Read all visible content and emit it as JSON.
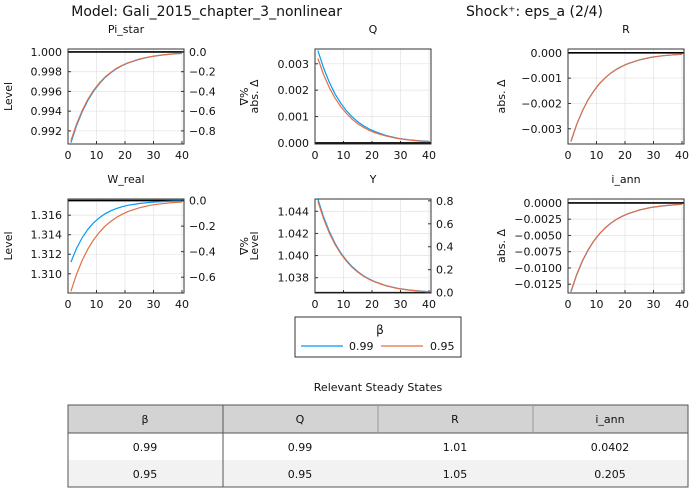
{
  "header": {
    "model": "Model: Gali_2015_chapter_3_nonlinear",
    "shock": "Shock⁺: eps_a  (2/4)"
  },
  "colors": {
    "series": [
      "#009AFA",
      "#E26F46"
    ],
    "steady_line": "#000000"
  },
  "legend": {
    "title": "β",
    "entries": [
      "0.99",
      "0.95"
    ],
    "placement": "bottom-center"
  },
  "chart_data": [
    {
      "type": "line",
      "title": "Pi_star",
      "ylabel": "Level",
      "y2label": "%Δ",
      "xlim": [
        0,
        40.7
      ],
      "xticks": [
        0,
        10,
        20,
        30,
        40
      ],
      "grid": true,
      "ylim": [
        0.99067,
        1.0003
      ],
      "yticks": [
        0.992,
        0.994,
        0.996,
        0.998,
        1.0
      ],
      "ytick_labels": [
        "0.992",
        "0.994",
        "0.996",
        "0.998",
        "1.000"
      ],
      "steady_state": 1.0,
      "y2lim": [
        -0.933,
        0.03
      ],
      "y2ticks": [
        -0.8,
        -0.6,
        -0.4,
        -0.2,
        0.0
      ],
      "y2tick_labels": [
        "−0.8",
        "−0.6",
        "−0.4",
        "−0.2",
        "0.0"
      ],
      "x": [
        1,
        3,
        5,
        7,
        9,
        11,
        13,
        15,
        17,
        19,
        21,
        25,
        29,
        33,
        37,
        40
      ],
      "series": [
        {
          "name": "0.99",
          "values": [
            0.9908,
            0.99255,
            0.99396,
            0.99511,
            0.99604,
            0.99679,
            0.99741,
            0.99789,
            0.9983,
            0.99862,
            0.99888,
            0.99926,
            0.99952,
            0.99969,
            0.9998,
            0.99985
          ]
        },
        {
          "name": "0.95",
          "values": [
            0.991,
            0.99271,
            0.9941,
            0.99522,
            0.99613,
            0.99686,
            0.99746,
            0.99794,
            0.99834,
            0.99865,
            0.9989,
            0.99928,
            0.99953,
            0.99969,
            0.9998,
            0.99986
          ]
        }
      ]
    },
    {
      "type": "line",
      "title": "Q",
      "ylabel": "abs. Δ",
      "xlim": [
        0,
        40.7
      ],
      "xticks": [
        0,
        10,
        20,
        30,
        40
      ],
      "grid": true,
      "ylim": [
        -4e-05,
        0.00356
      ],
      "yticks": [
        0,
        0.001,
        0.002,
        0.003
      ],
      "ytick_labels": [
        "0.000",
        "0.001",
        "0.002",
        "0.003"
      ],
      "steady_state": 0,
      "x": [
        1,
        3,
        5,
        7,
        9,
        11,
        13,
        15,
        17,
        19,
        21,
        25,
        29,
        33,
        37,
        40
      ],
      "series": [
        {
          "name": "0.99",
          "values": [
            0.0035,
            0.00284,
            0.0023,
            0.00186,
            0.00151,
            0.00122,
            0.00099,
            0.0008,
            0.00065,
            0.00053,
            0.00043,
            0.00028,
            0.00018,
            0.00012,
            8e-05,
            6e-05
          ]
        },
        {
          "name": "0.95",
          "values": [
            0.0032,
            0.00259,
            0.0021,
            0.0017,
            0.00138,
            0.00112,
            0.0009,
            0.00073,
            0.00059,
            0.00048,
            0.00039,
            0.00026,
            0.00017,
            0.00011,
            7e-05,
            5e-05
          ]
        }
      ]
    },
    {
      "type": "line",
      "title": "R",
      "ylabel": "abs. Δ",
      "xlim": [
        0,
        40.7
      ],
      "xticks": [
        0,
        10,
        20,
        30,
        40
      ],
      "grid": true,
      "ylim": [
        -0.0036,
        0.00015
      ],
      "yticks": [
        -0.003,
        -0.002,
        -0.001,
        0
      ],
      "ytick_labels": [
        "−0.003",
        "−0.002",
        "−0.001",
        "0.000"
      ],
      "steady_state": 0,
      "x": [
        1,
        3,
        5,
        7,
        9,
        11,
        13,
        15,
        17,
        19,
        21,
        25,
        29,
        33,
        37,
        40
      ],
      "series": [
        {
          "name": "0.99",
          "values": [
            -0.0035,
            -0.00284,
            -0.0023,
            -0.00186,
            -0.00151,
            -0.00122,
            -0.00099,
            -0.0008,
            -0.00065,
            -0.00053,
            -0.00043,
            -0.00028,
            -0.00018,
            -0.00012,
            -8e-05,
            -6e-05
          ]
        },
        {
          "name": "0.95",
          "values": [
            -0.0035,
            -0.00284,
            -0.0023,
            -0.00186,
            -0.00151,
            -0.00122,
            -0.00099,
            -0.0008,
            -0.00065,
            -0.00053,
            -0.00043,
            -0.00028,
            -0.00018,
            -0.00012,
            -8e-05,
            -6e-05
          ]
        }
      ]
    },
    {
      "type": "line",
      "title": "W_real",
      "ylabel": "Level",
      "y2label": "%Δ",
      "xlim": [
        0,
        40.7
      ],
      "xticks": [
        0,
        10,
        20,
        30,
        40
      ],
      "grid": true,
      "ylim": [
        1.30803,
        1.31766
      ],
      "yticks": [
        1.31,
        1.312,
        1.314,
        1.316
      ],
      "ytick_labels": [
        "1.310",
        "1.312",
        "1.314",
        "1.316"
      ],
      "steady_state": 1.3175,
      "y2lim": [
        -0.7235,
        0.0121
      ],
      "y2ticks": [
        -0.6,
        -0.4,
        -0.2,
        0.0
      ],
      "y2tick_labels": [
        "−0.6",
        "−0.4",
        "−0.2",
        "0.0"
      ],
      "x": [
        1,
        3,
        5,
        7,
        9,
        11,
        13,
        15,
        17,
        19,
        21,
        25,
        29,
        33,
        37,
        40
      ],
      "series": [
        {
          "name": "0.99",
          "values": [
            1.3112,
            1.31262,
            1.31372,
            1.31458,
            1.31523,
            1.31574,
            1.31614,
            1.31645,
            1.31669,
            1.31687,
            1.31701,
            1.3172,
            1.31732,
            1.31739,
            1.31744,
            1.31746
          ]
        },
        {
          "name": "0.95",
          "values": [
            1.3082,
            1.30997,
            1.3114,
            1.31256,
            1.3135,
            1.31425,
            1.31488,
            1.31537,
            1.31578,
            1.3161,
            1.31637,
            1.31676,
            1.31702,
            1.31718,
            1.3173,
            1.31735
          ]
        }
      ]
    },
    {
      "type": "line",
      "title": "Y",
      "ylabel": "Level",
      "y2label": "",
      "xlim": [
        0,
        40.7
      ],
      "xticks": [
        0,
        10,
        20,
        30,
        40
      ],
      "grid": true,
      "ylim": [
        1.03662,
        1.04511
      ],
      "yticks": [
        1.038,
        1.04,
        1.042,
        1.044
      ],
      "ytick_labels": [
        "1.038",
        "1.040",
        "1.042",
        "1.044"
      ],
      "steady_state": 1.03665,
      "y2lim": [
        -0.003,
        0.816
      ],
      "y2ticks": [
        0,
        0.2,
        0.4,
        0.6,
        0.8
      ],
      "y2tick_labels": [
        "0.0",
        "0.2",
        "0.4",
        "0.6",
        "0.8"
      ],
      "x": [
        1,
        3,
        5,
        7,
        9,
        11,
        13,
        15,
        17,
        19,
        21,
        25,
        29,
        33,
        37,
        40
      ],
      "series": [
        {
          "name": "0.99",
          "values": [
            1.0451,
            1.04348,
            1.04218,
            1.04111,
            1.04025,
            1.03957,
            1.039,
            1.03855,
            1.03817,
            1.03788,
            1.03764,
            1.03728,
            1.03704,
            1.03689,
            1.03679,
            1.03674
          ]
        },
        {
          "name": "0.95",
          "values": [
            1.0449,
            1.04332,
            1.04204,
            1.04101,
            1.04017,
            1.0395,
            1.03894,
            1.0385,
            1.03814,
            1.03785,
            1.03761,
            1.03726,
            1.03703,
            1.03688,
            1.03678,
            1.03673
          ]
        }
      ]
    },
    {
      "type": "line",
      "title": "i_ann",
      "ylabel": "abs. Δ",
      "xlim": [
        0,
        40.7
      ],
      "xticks": [
        0,
        10,
        20,
        30,
        40
      ],
      "grid": true,
      "ylim": [
        -0.01385,
        0.0006
      ],
      "yticks": [
        -0.0125,
        -0.01,
        -0.0075,
        -0.005,
        -0.0025,
        0
      ],
      "ytick_labels": [
        "−0.0125",
        "−0.0100",
        "−0.0075",
        "−0.0050",
        "−0.0025",
        "0.0000"
      ],
      "steady_state": 0,
      "x": [
        1,
        3,
        5,
        7,
        9,
        11,
        13,
        15,
        17,
        19,
        21,
        25,
        29,
        33,
        37,
        40
      ],
      "series": [
        {
          "name": "0.99",
          "values": [
            -0.0137,
            -0.0111,
            -0.00899,
            -0.00728,
            -0.00589,
            -0.00478,
            -0.00386,
            -0.00314,
            -0.00253,
            -0.00206,
            -0.00167,
            -0.0011,
            -0.00071,
            -0.00047,
            -0.0003,
            -0.00022
          ]
        },
        {
          "name": "0.95",
          "values": [
            -0.0136,
            -0.01102,
            -0.00892,
            -0.00722,
            -0.00585,
            -0.00475,
            -0.00384,
            -0.00311,
            -0.00252,
            -0.00204,
            -0.00166,
            -0.00109,
            -0.00071,
            -0.00046,
            -0.0003,
            -0.00022
          ]
        }
      ]
    }
  ],
  "table": {
    "title": "Relevant Steady States",
    "headers": [
      "β",
      "Q",
      "R",
      "i_ann"
    ],
    "rows": [
      [
        "0.99",
        "0.99",
        "1.01",
        "0.0402"
      ],
      [
        "0.95",
        "0.95",
        "1.05",
        "0.205"
      ]
    ]
  }
}
